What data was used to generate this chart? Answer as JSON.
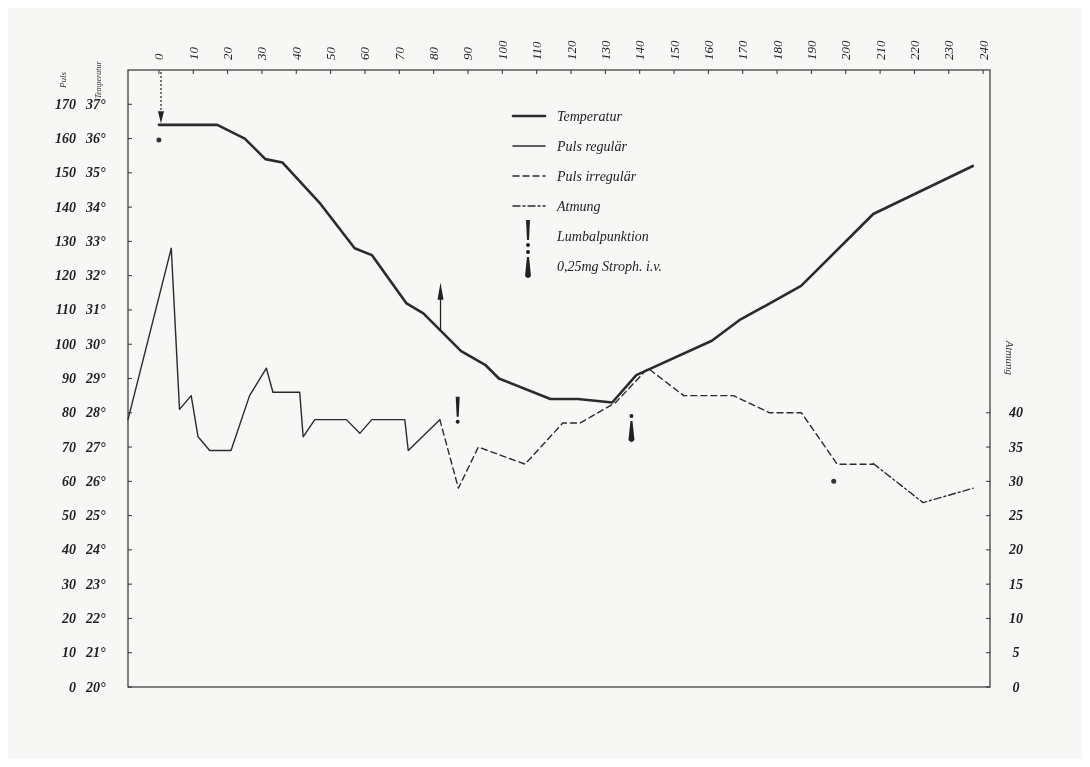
{
  "chart_data": {
    "type": "line",
    "ylabel": "Puls",
    "y2label": "Temperatur",
    "y3label": "Atmung",
    "legend": "top",
    "xlim": [
      -9,
      242
    ],
    "xticks": [
      0,
      10,
      20,
      30,
      40,
      50,
      60,
      70,
      80,
      90,
      100,
      110,
      120,
      130,
      140,
      150,
      160,
      170,
      180,
      190,
      200,
      210,
      220,
      230,
      240
    ],
    "ylim": [
      0,
      180
    ],
    "yticks": [
      0,
      10,
      20,
      30,
      40,
      50,
      60,
      70,
      80,
      90,
      100,
      110,
      120,
      130,
      140,
      150,
      160,
      170
    ],
    "y2lim": [
      20,
      38
    ],
    "y2ticks": [
      {
        "value": 20,
        "label": "20°"
      },
      {
        "value": 21,
        "label": "21°"
      },
      {
        "value": 22,
        "label": "22°"
      },
      {
        "value": 23,
        "label": "23°"
      },
      {
        "value": 24,
        "label": "24°"
      },
      {
        "value": 25,
        "label": "25°"
      },
      {
        "value": 26,
        "label": "26°"
      },
      {
        "value": 27,
        "label": "27°"
      },
      {
        "value": 28,
        "label": "28°"
      },
      {
        "value": 29,
        "label": "29°"
      },
      {
        "value": 30,
        "label": "30°"
      },
      {
        "value": 31,
        "label": "31°"
      },
      {
        "value": 32,
        "label": "32°"
      },
      {
        "value": 33,
        "label": "33°"
      },
      {
        "value": 34,
        "label": "34°"
      },
      {
        "value": 35,
        "label": "35°"
      },
      {
        "value": 36,
        "label": "36°"
      },
      {
        "value": 37,
        "label": "37°"
      }
    ],
    "y3lim": [
      0,
      90
    ],
    "y3ticks": [
      0,
      5,
      10,
      15,
      20,
      25,
      30,
      35,
      40
    ],
    "series": [
      {
        "name": "Temperatur",
        "color": "#2b2b2b",
        "axis": "y2",
        "line_style": "solid",
        "x": [
          0,
          17,
          25,
          31,
          36,
          47,
          57,
          62,
          72,
          77,
          88,
          95,
          99,
          114,
          122,
          132,
          139,
          161,
          169,
          187,
          208,
          237
        ],
        "values": [
          36.4,
          36.4,
          36.0,
          35.4,
          35.3,
          34.1,
          32.8,
          32.6,
          31.2,
          30.9,
          29.8,
          29.4,
          29.0,
          28.4,
          28.4,
          28.3,
          29.1,
          30.1,
          30.7,
          31.7,
          33.8,
          35.2
        ]
      },
      {
        "name": "Puls regulär",
        "color": "#2b2b2b",
        "axis": "y",
        "line_style": "solid",
        "x": [
          -9,
          3.6,
          6,
          9.4,
          11.4,
          14.8,
          21,
          26.4,
          31.3,
          33.2,
          41,
          42,
          45.4,
          54.6,
          58.5,
          62,
          71.6,
          72.6,
          81.8
        ],
        "values": [
          78,
          128,
          81,
          85,
          73,
          69,
          69,
          85,
          93,
          86,
          86,
          73,
          78,
          78,
          74,
          78,
          78,
          69,
          78
        ]
      },
      {
        "name": "Puls irregulär",
        "color": "#2b2b2b",
        "axis": "y",
        "line_style": "dashed",
        "x": [
          81.8,
          87.2,
          93,
          106.6,
          117.6,
          122.6,
          133,
          142.4,
          152.8,
          167.3,
          177.8,
          187.1,
          197.5,
          208
        ],
        "values": [
          78,
          58,
          70,
          65,
          77,
          77,
          83,
          93,
          85,
          85,
          80,
          80,
          65,
          65
        ]
      },
      {
        "name": "Atmung",
        "color": "#2b2b2b",
        "axis": "y3",
        "line_style": "dashdot",
        "x": [
          208,
          222.5,
          237.1
        ],
        "values": [
          32.6,
          26.9,
          29.0
        ]
      }
    ],
    "annotations": [
      "Lumbalpunktion",
      "0,25mg Stroph. i.v."
    ]
  }
}
